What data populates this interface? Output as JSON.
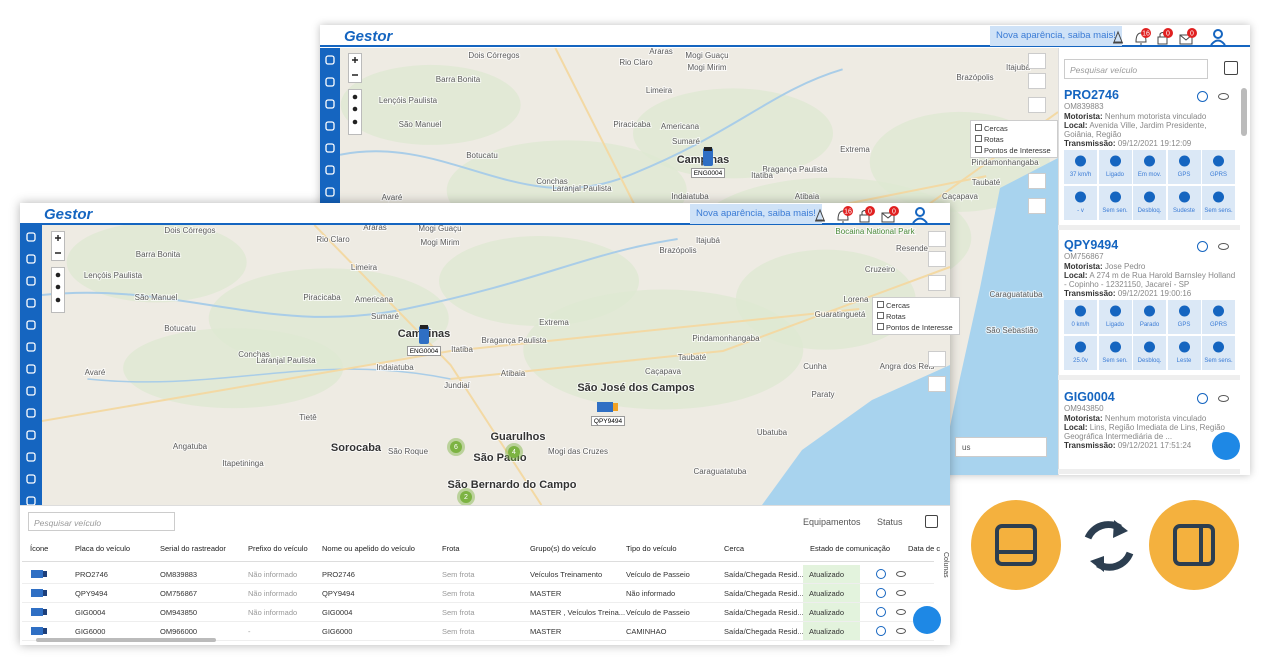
{
  "back_window": {
    "brand": "Gestor",
    "banner": "Nova aparência, saiba mais!",
    "badges": [
      "16",
      "0",
      "0"
    ],
    "map_labels": [
      "Dois Córregos",
      "Araras",
      "Mogi Guaçu",
      "Rio Claro",
      "Mogi Mirim",
      "Barra Bonita",
      "Itajubá",
      "Brazópolis",
      "Limeira",
      "Lençóis Paulista",
      "São Manuel",
      "Piracicaba",
      "Americana",
      "Sumaré",
      "Campinas",
      "Extrema",
      "Botucatu",
      "Bragança Paulista",
      "Pindamonhangaba",
      "Conchas",
      "Laranjal Paulista",
      "Indaiatuba",
      "Itatiba",
      "Atibaia",
      "Taubaté",
      "Caçapava",
      "Avaré",
      "Caraguatatuba",
      "São Sebastião"
    ],
    "layers": [
      "Cercas",
      "Rotas",
      "Pontos de Interesse"
    ],
    "marker": "ENG0004",
    "select_text": "us",
    "search_placeholder": "Pesquisar veículo",
    "cards": [
      {
        "plate": "PRO2746",
        "code": "OM839883",
        "driver_label": "Motorista:",
        "driver": "Nenhum motorista vinculado",
        "location_label": "Local:",
        "location": "Avenida Ville, Jardim Presidente, Goiânia, Região",
        "transmission_label": "Transmissão:",
        "transmission": "09/12/2021 19:12:09",
        "status": [
          "37 km/h",
          "Ligado",
          "Em mov.",
          "GPS",
          "GPRS",
          "- v",
          "Sem sen.",
          "Desbloq.",
          "Sudeste",
          "Sem sens."
        ]
      },
      {
        "plate": "QPY9494",
        "code": "OM756867",
        "driver_label": "Motorista:",
        "driver": "Jose Pedro",
        "location_label": "Local:",
        "location": "A 274 m de Rua Harold Barnsley Holland - Copinho - 12321150, Jacareí - SP",
        "transmission_label": "Transmissão:",
        "transmission": "09/12/2021 19:00:16",
        "status": [
          "0 km/h",
          "Ligado",
          "Parado",
          "GPS",
          "GPRS",
          "25.0v",
          "Sem sen.",
          "Desbloq.",
          "Leste",
          "Sem sens."
        ]
      },
      {
        "plate": "GIG0004",
        "code": "OM943850",
        "driver_label": "Motorista:",
        "driver": "Nenhum motorista vinculado",
        "location_label": "Local:",
        "location": "Lins, Região Imediata de Lins, Região Geográfica Intermediária de ...",
        "transmission_label": "Transmissão:",
        "transmission": "09/12/2021 17:51:24"
      }
    ]
  },
  "front_window": {
    "brand": "Gestor",
    "banner": "Nova aparência, saiba mais!",
    "badges": [
      "16",
      "0",
      "0"
    ],
    "map_labels": [
      "Dois Córregos",
      "Rio Claro",
      "Mogi Guaçu",
      "Mogi Mirim",
      "Barra Bonita",
      "Limeira",
      "Brazópolis",
      "Itajubá",
      "Resende",
      "Lençóis Paulista",
      "Piracicaba",
      "Americana",
      "São Manuel",
      "Sumaré",
      "Cruzeiro",
      "Lorena",
      "Guaratinguetá",
      "Campinas",
      "Botucatu",
      "Extrema",
      "Bragança Paulista",
      "Pindamonhangaba",
      "Conchas",
      "Laranjal Paulista",
      "Indaiatuba",
      "Itatiba",
      "Taubaté",
      "Caçapava",
      "Cunha",
      "Avaré",
      "São José dos Campos",
      "Ubatuba",
      "Tietê",
      "Jundiaí",
      "Atibaia",
      "Paraty",
      "Sorocaba",
      "Guarulhos",
      "São Paulo",
      "São Bernardo do Campo",
      "Mogi das Cruzes",
      "Angatuba",
      "Itapetininga",
      "Caraguatatuba",
      "São Roque",
      "Angra dos Reis",
      "Bocaina National Park",
      "Araras"
    ],
    "layers": [
      "Cercas",
      "Rotas",
      "Pontos de Interesse"
    ],
    "markers": [
      "ENG0004",
      "QPY9494"
    ],
    "clusters": [
      "6",
      "4",
      "2"
    ],
    "search_placeholder": "Pesquisar veículo",
    "toolbar": {
      "equipment": "Equipamentos",
      "status": "Status",
      "columns": "Colunas"
    },
    "table": {
      "headers": [
        "Ícone",
        "Placa do veículo",
        "Serial do rastreador",
        "Prefixo do veículo",
        "Nome ou apelido do veículo",
        "Frota",
        "Grupo(s) do veículo",
        "Tipo do veículo",
        "Cerca",
        "Estado de comunicação",
        "Data de c"
      ],
      "rows": [
        [
          "PRO2746",
          "OM839883",
          "Não informado",
          "PRO2746",
          "Sem frota",
          "Veículos Treinamento",
          "Veículo de Passeio",
          "Saída/Chegada Resid...",
          "Atualizado"
        ],
        [
          "QPY9494",
          "OM756867",
          "Não informado",
          "QPY9494",
          "Sem frota",
          "MASTER",
          "Não informado",
          "Saída/Chegada Resid...",
          "Atualizado"
        ],
        [
          "GIG0004",
          "OM943850",
          "Não informado",
          "GIG0004",
          "Sem frota",
          "MASTER , Veículos Treina...",
          "Veículo de Passeio",
          "Saída/Chegada Resid...",
          "Atualizado"
        ],
        [
          "GIG6000",
          "OM966000",
          "-",
          "GIG6000",
          "Sem frota",
          "MASTER",
          "CAMINHAO",
          "Saída/Chegada Resid...",
          "Atualizado"
        ]
      ]
    }
  }
}
